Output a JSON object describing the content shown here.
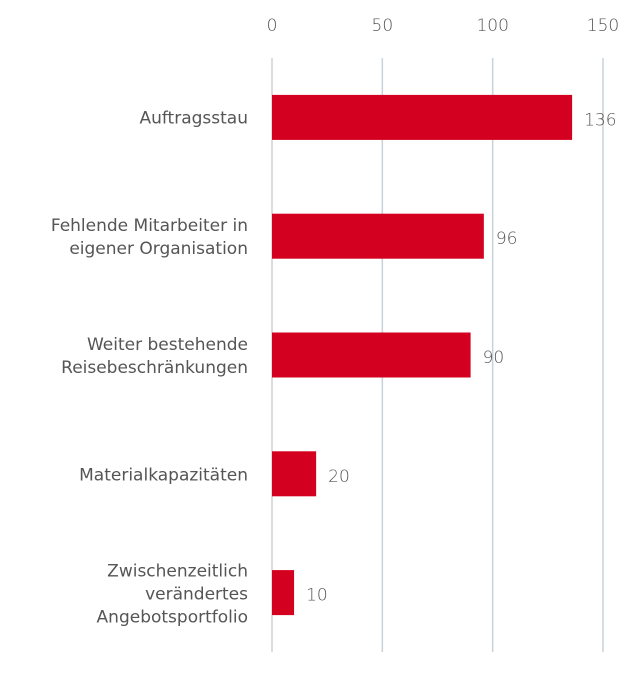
{
  "chart_data": {
    "type": "bar",
    "orientation": "horizontal",
    "categories": [
      "Auftragsstau",
      "Fehlende Mitarbeiter in\neigener Organisation",
      "Weiter bestehende\nReisebeschränkungen",
      "Materialkapazitäten",
      "Zwischenzeitlich\nverändertes\nAngebotsportfolio"
    ],
    "values": [
      136,
      96,
      90,
      20,
      10
    ],
    "color": "#d3001f",
    "xlim": [
      0,
      150
    ],
    "xticks": [
      0,
      50,
      100,
      150
    ],
    "grid": true
  }
}
